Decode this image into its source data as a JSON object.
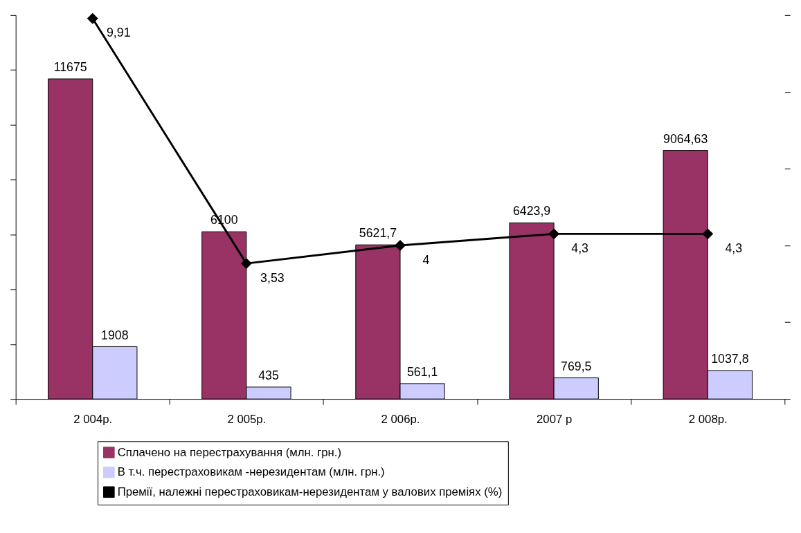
{
  "chart_data": {
    "type": "bar",
    "categories": [
      "2 004р.",
      "2 005р.",
      "2 006р.",
      "2007 р",
      "2 008р."
    ],
    "series": [
      {
        "name": "Сплачено на перестрахування (млн. грн.)",
        "color": "#993366",
        "values": [
          11675,
          6100,
          5621.7,
          6423.9,
          9064.63
        ],
        "value_labels": [
          "11675",
          "6100",
          "5621,7",
          "6423,9",
          "9064,63"
        ]
      },
      {
        "name": "В т.ч. перестраховикам -нерезидентам (млн. грн.)",
        "color": "#ccccff",
        "values": [
          1908,
          435,
          561.1,
          769.5,
          1037.8
        ],
        "value_labels": [
          "1908",
          "435",
          "561,1",
          "769,5",
          "1037,8"
        ]
      },
      {
        "name": "Премії, належні перестраховикам-нерезидентам у валових преміях (%)",
        "type": "line",
        "axis": "y2",
        "color": "#000000",
        "marker": "diamond",
        "line_style": "solid",
        "values": [
          9.91,
          3.53,
          4,
          4.3,
          4.3
        ],
        "value_labels": [
          "9,91",
          "3,53",
          "4",
          "4,3",
          "4,3"
        ]
      }
    ],
    "ylim": [
      0,
      14000
    ],
    "yticks": [
      {
        "value": 0,
        "label": null
      },
      {
        "value": 2000,
        "label": null
      },
      {
        "value": 4000,
        "label": null
      },
      {
        "value": 6000,
        "label": null
      },
      {
        "value": 8000,
        "label": null
      },
      {
        "value": 10000,
        "label": null
      },
      {
        "value": 12000,
        "label": null
      },
      {
        "value": 14000,
        "label": null
      }
    ],
    "tick_labels": "x",
    "legend": "bottom"
  }
}
